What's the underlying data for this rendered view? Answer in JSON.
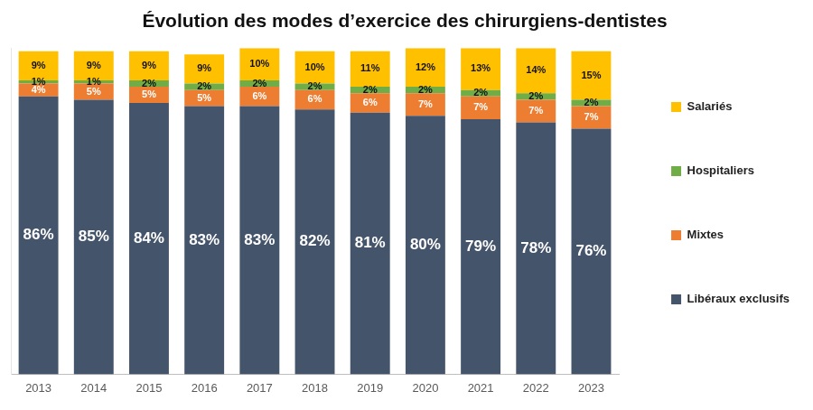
{
  "chart_data": {
    "type": "bar",
    "title": "Évolution des modes d’exercice des chirurgiens-dentistes",
    "categories": [
      "2013",
      "2014",
      "2015",
      "2016",
      "2017",
      "2018",
      "2019",
      "2020",
      "2021",
      "2022",
      "2023"
    ],
    "series": [
      {
        "name": "Libéraux exclusifs",
        "color": "#44546A",
        "values": [
          86,
          85,
          84,
          83,
          83,
          82,
          81,
          80,
          79,
          78,
          76
        ],
        "value_labels": [
          "86%",
          "85%",
          "84%",
          "83%",
          "83%",
          "82%",
          "81%",
          "80%",
          "79%",
          "78%",
          "76%"
        ]
      },
      {
        "name": "Mixtes",
        "color": "#ED7D31",
        "values": [
          4,
          5,
          5,
          5,
          6,
          6,
          6,
          7,
          7,
          7,
          7
        ],
        "value_labels": [
          "4%",
          "5%",
          "5%",
          "5%",
          "6%",
          "6%",
          "6%",
          "7%",
          "7%",
          "7%",
          "7%"
        ]
      },
      {
        "name": "Hospitaliers",
        "color": "#70AD47",
        "values": [
          1,
          1,
          2,
          2,
          2,
          2,
          2,
          2,
          2,
          2,
          2
        ],
        "value_labels": [
          "1%",
          "1%",
          "2%",
          "2%",
          "2%",
          "2%",
          "2%",
          "2%",
          "2%",
          "2%",
          "2%"
        ]
      },
      {
        "name": "Salariés",
        "color": "#FFC000",
        "values": [
          9,
          9,
          9,
          9,
          10,
          10,
          11,
          12,
          13,
          14,
          15
        ],
        "value_labels": [
          "9%",
          "9%",
          "9%",
          "9%",
          "10%",
          "10%",
          "11%",
          "12%",
          "13%",
          "14%",
          "15%"
        ]
      }
    ],
    "ylim": [
      0,
      101
    ],
    "stacked": true,
    "data_labels": true,
    "legend": "right",
    "grid": false,
    "tick_labels": "x"
  }
}
